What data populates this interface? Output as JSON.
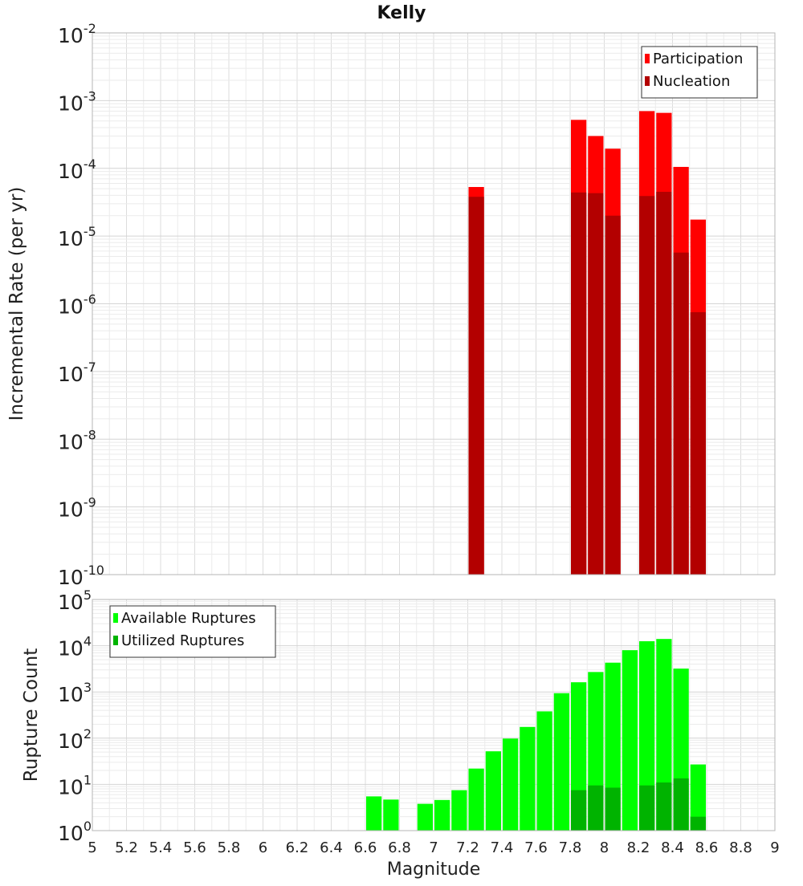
{
  "chart_data": [
    {
      "type": "bar",
      "title": "Kelly",
      "xlabel": "",
      "ylabel": "Incremental Rate (per yr)",
      "yscale": "log",
      "ylim_exp": [
        -10,
        -2
      ],
      "xlim": [
        5,
        9
      ],
      "bin_width": 0.1,
      "legend_position": "top-right",
      "x": [
        7.25,
        7.85,
        7.95,
        8.05,
        8.25,
        8.35,
        8.45,
        8.55
      ],
      "series": [
        {
          "name": "Participation",
          "color": "#ff0000",
          "values": [
            5.3e-05,
            0.00052,
            0.0003,
            0.000195,
            0.0007,
            0.00066,
            0.000105,
            1.75e-05
          ]
        },
        {
          "name": "Nucleation",
          "color": "#b30000",
          "values": [
            3.8e-05,
            4.4e-05,
            4.3e-05,
            2e-05,
            3.9e-05,
            4.5e-05,
            5.7e-06,
            7.5e-07
          ]
        }
      ]
    },
    {
      "type": "bar",
      "title": "",
      "xlabel": "Magnitude",
      "ylabel": "Rupture Count",
      "yscale": "log",
      "ylim_exp": [
        0,
        5
      ],
      "xlim": [
        5,
        9
      ],
      "bin_width": 0.1,
      "legend_position": "top-left",
      "x_ticks": [
        "5",
        "5.2",
        "5.4",
        "5.6",
        "5.8",
        "6",
        "6.2",
        "6.4",
        "6.6",
        "6.8",
        "7",
        "7.2",
        "7.4",
        "7.6",
        "7.8",
        "8",
        "8.2",
        "8.4",
        "8.6",
        "8.8",
        "9"
      ],
      "series": [
        {
          "name": "Available Ruptures",
          "color": "#00ff00",
          "x": [
            6.65,
            6.75,
            6.95,
            7.05,
            7.15,
            7.25,
            7.35,
            7.45,
            7.55,
            7.65,
            7.75,
            7.85,
            7.95,
            8.05,
            8.15,
            8.25,
            8.35,
            8.45,
            8.55
          ],
          "values": [
            5.5,
            4.7,
            3.8,
            4.6,
            7.5,
            22,
            52,
            98,
            175,
            380,
            940,
            1620,
            2700,
            4300,
            8000,
            12500,
            14000,
            3200,
            27
          ]
        },
        {
          "name": "Utilized Ruptures",
          "color": "#00b300",
          "x": [
            7.25,
            7.85,
            7.95,
            8.05,
            8.25,
            8.35,
            8.45,
            8.55
          ],
          "values": [
            1,
            7.5,
            9.5,
            8.5,
            9.5,
            11,
            13.5,
            2
          ]
        }
      ]
    }
  ]
}
